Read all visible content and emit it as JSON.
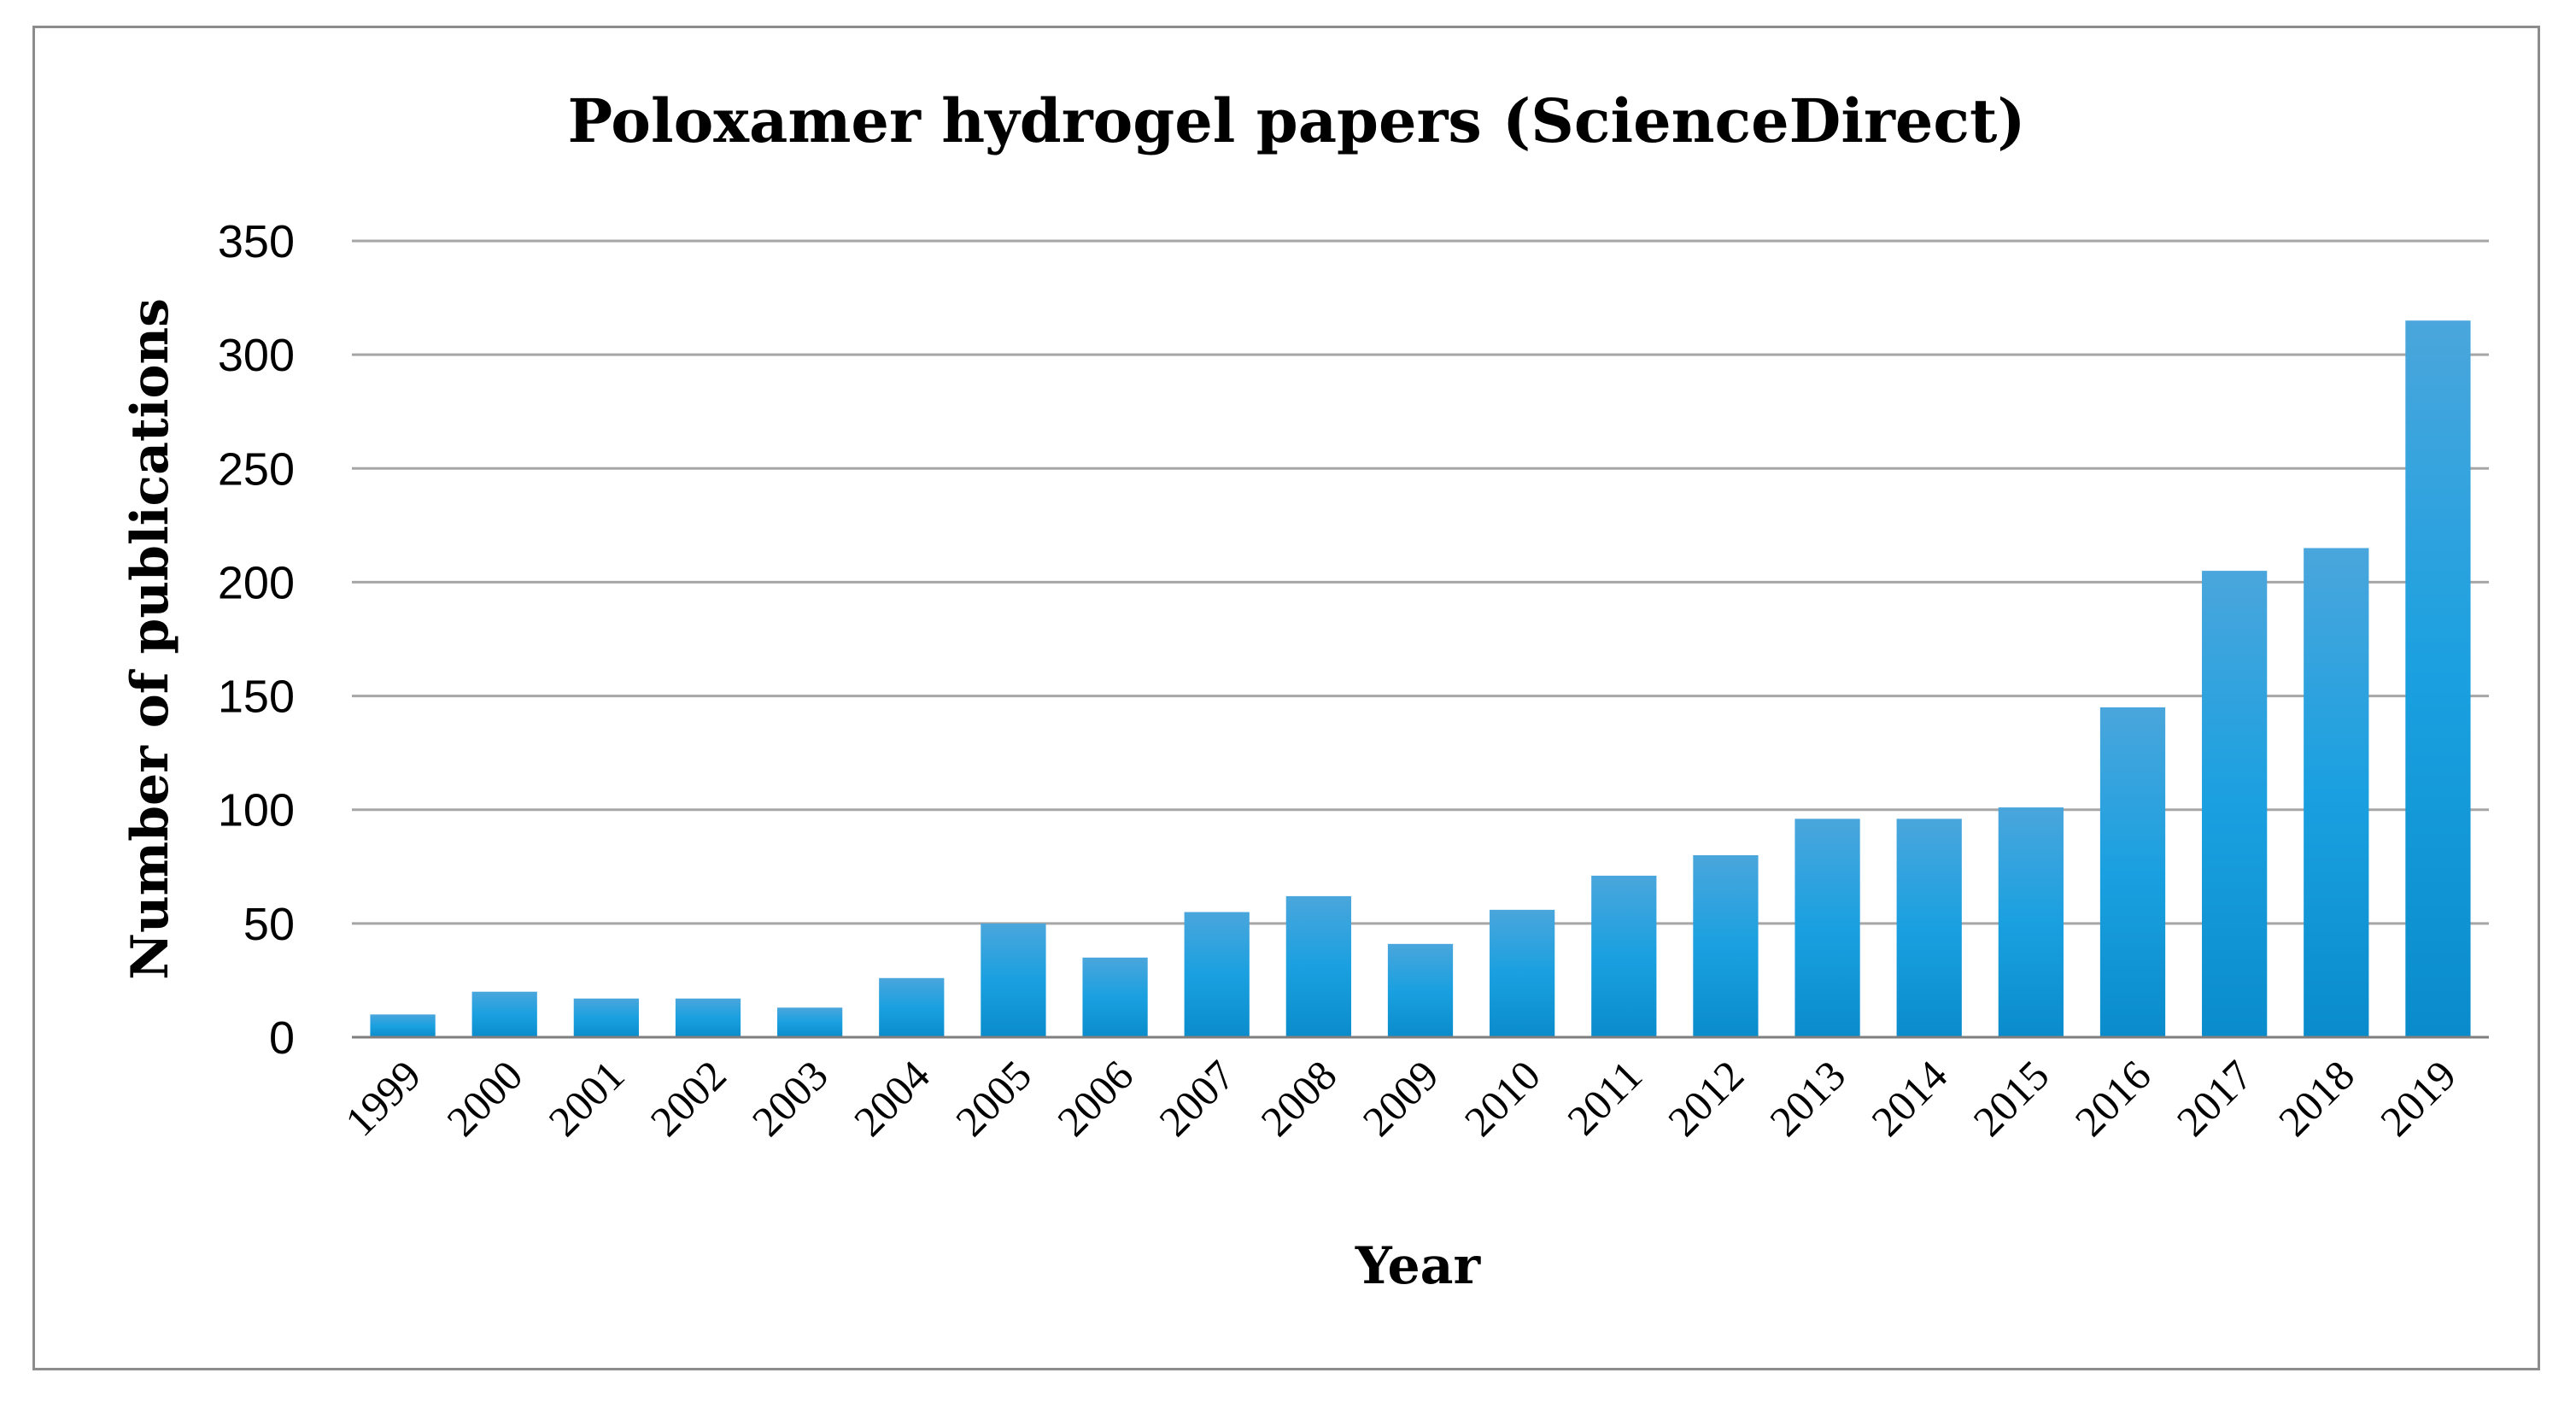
{
  "chart_data": {
    "type": "bar",
    "title": "Poloxamer hydrogel papers (ScienceDirect)",
    "xlabel": "Year",
    "ylabel": "Number of publications",
    "categories": [
      "1999",
      "2000",
      "2001",
      "2002",
      "2003",
      "2004",
      "2005",
      "2006",
      "2007",
      "2008",
      "2009",
      "2010",
      "2011",
      "2012",
      "2013",
      "2014",
      "2015",
      "2016",
      "2017",
      "2018",
      "2019"
    ],
    "values": [
      10,
      20,
      17,
      17,
      13,
      26,
      50,
      35,
      55,
      62,
      41,
      56,
      71,
      80,
      96,
      96,
      101,
      145,
      205,
      215,
      315
    ],
    "ylim": [
      0,
      350
    ],
    "yticks": [
      "0",
      "50",
      "100",
      "150",
      "200",
      "250",
      "300",
      "350"
    ],
    "grid": true,
    "legend": "none",
    "colors": {
      "bar_top": "#4aa6dc",
      "bar_mid": "#1aa0e0",
      "bar_bottom": "#0a8ccc",
      "gridline": "#a6a6a6",
      "frame": "#8c8c8c"
    }
  }
}
